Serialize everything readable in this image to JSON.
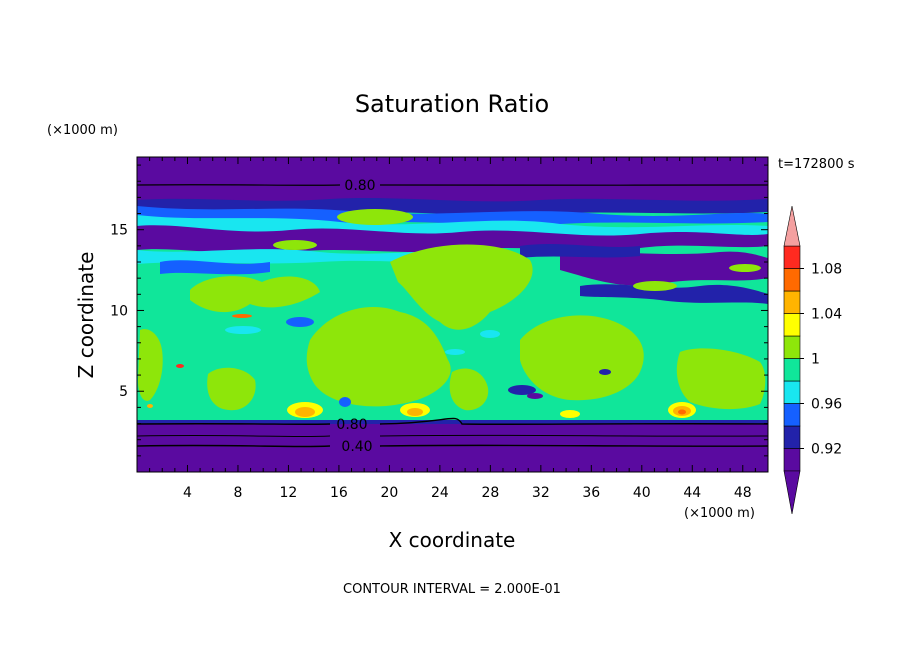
{
  "chart_data": {
    "type": "heatmap",
    "title": "Saturation Ratio",
    "xlabel": "X coordinate",
    "ylabel": "Z coordinate",
    "x_unit": "(×1000 m)",
    "y_unit": "(×1000 m)",
    "time_label": "t=172800 s",
    "footer": "CONTOUR INTERVAL = 2.000E-01",
    "xlim": [
      0,
      50
    ],
    "ylim": [
      0,
      19.5
    ],
    "x_ticks": [
      "4",
      "8",
      "12",
      "16",
      "20",
      "24",
      "28",
      "32",
      "36",
      "40",
      "44",
      "48"
    ],
    "y_ticks": [
      "5",
      "10",
      "15"
    ],
    "contour_labels": [
      "0.80",
      "0.80",
      "0.40"
    ],
    "colorbar": {
      "labels": [
        "1.08",
        "1.04",
        "1",
        "0.96",
        "0.92"
      ],
      "levels": [
        0.9,
        0.92,
        0.94,
        0.96,
        0.98,
        1.0,
        1.02,
        1.04,
        1.06,
        1.08,
        1.1
      ],
      "colors": [
        "#5a0aa0",
        "#2222aa",
        "#1560ff",
        "#19e6f0",
        "#10e69a",
        "#8ee60a",
        "#ffff00",
        "#ffb400",
        "#ff6a00",
        "#ff2a20"
      ],
      "over_color": "#f4a0a0",
      "under_color": "#5a0aa0"
    }
  }
}
